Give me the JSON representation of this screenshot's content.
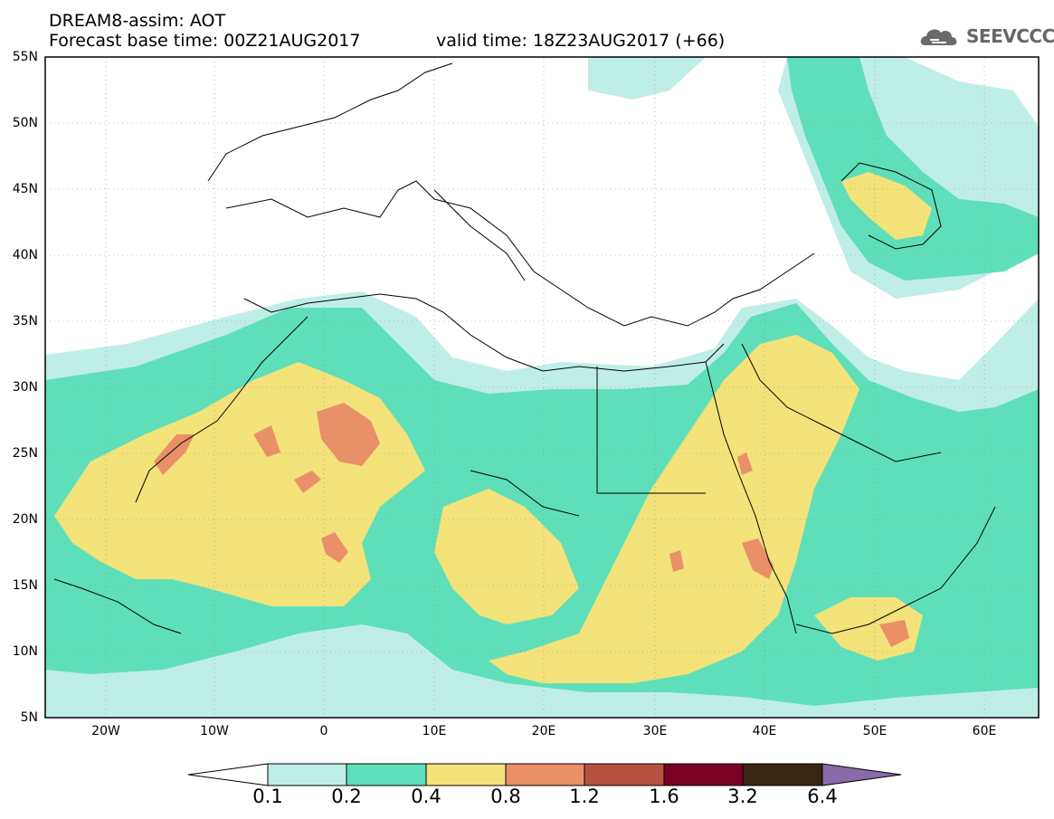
{
  "header": {
    "line1": "DREAM8-assim: AOT",
    "line2": "Forecast base time: 00Z21AUG2017",
    "valid": "valid time: 18Z23AUG2017 (+66)",
    "logo": "SEEVCCC"
  },
  "map": {
    "lat_labels": [
      "55N",
      "50N",
      "45N",
      "40N",
      "35N",
      "30N",
      "25N",
      "20N",
      "15N",
      "10N",
      "5N"
    ],
    "lon_labels": [
      "20W",
      "10W",
      "0",
      "10E",
      "20E",
      "30E",
      "40E",
      "50E",
      "60E"
    ],
    "lat_range": [
      5,
      55
    ],
    "lon_range": [
      -25,
      65
    ]
  },
  "colorbar": {
    "labels": [
      "0.1",
      "0.2",
      "0.4",
      "0.8",
      "1.2",
      "1.6",
      "3.2",
      "6.4"
    ],
    "colors": [
      "#bfeee6",
      "#5fdfb9",
      "#f4e27a",
      "#ea9068",
      "#b4523f",
      "#7a0024",
      "#3a2412",
      "#8a6aa8"
    ]
  },
  "colors": {
    "c1": "#bfeee6",
    "c2": "#5fdfb9",
    "c3": "#f4e27a",
    "c4": "#ea9068",
    "c5": "#b4523f"
  }
}
